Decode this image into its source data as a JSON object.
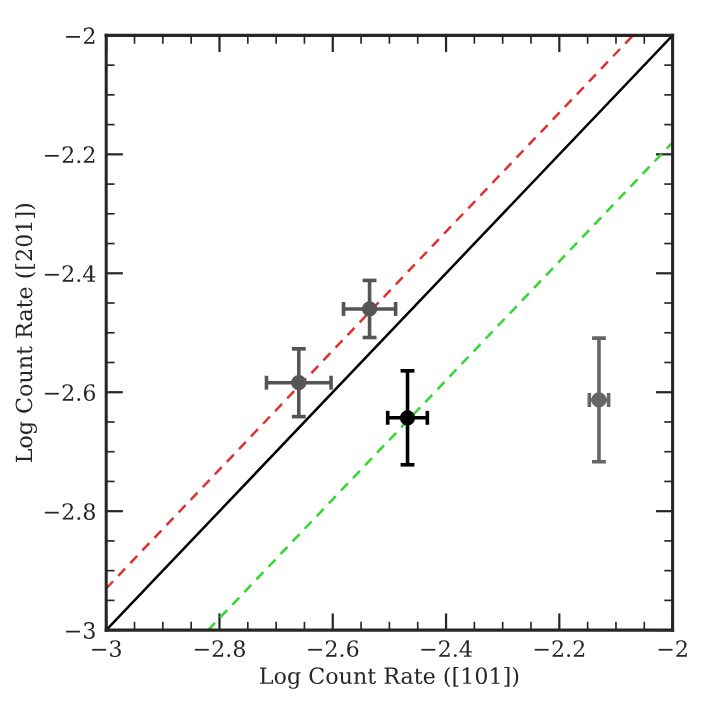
{
  "chart_data": {
    "type": "line",
    "xlabel": "Log Count Rate ([101])",
    "ylabel": "Log Count Rate ([201])",
    "xlim": [
      -3,
      -2
    ],
    "ylim": [
      -3,
      -2
    ],
    "xticks": [
      {
        "value": -3,
        "label": "−3"
      },
      {
        "value": -2.8,
        "label": "−2.8"
      },
      {
        "value": -2.6,
        "label": "−2.6"
      },
      {
        "value": -2.4,
        "label": "−2.4"
      },
      {
        "value": -2.2,
        "label": "−2.2"
      },
      {
        "value": -2,
        "label": "−2"
      }
    ],
    "yticks": [
      {
        "value": -3,
        "label": "−3"
      },
      {
        "value": -2.8,
        "label": "−2.8"
      },
      {
        "value": -2.6,
        "label": "−2.6"
      },
      {
        "value": -2.4,
        "label": "−2.4"
      },
      {
        "value": -2.2,
        "label": "−2.2"
      },
      {
        "value": -2,
        "label": "−2"
      }
    ],
    "grid": false,
    "series": [
      {
        "marker": "none",
        "color": "#e03030",
        "line_style": "dashed",
        "x": [
          -3,
          -2.07
        ],
        "values": [
          -2.93,
          -2
        ]
      },
      {
        "marker": "none",
        "color": "#000000",
        "line_style": "solid",
        "x": [
          -3,
          -2
        ],
        "values": [
          -3,
          -2
        ]
      },
      {
        "marker": "none",
        "color": "#30d830",
        "line_style": "dashed",
        "x": [
          -2.82,
          -2
        ],
        "values": [
          -3,
          -2.18
        ]
      },
      {
        "type": "scatter",
        "marker": "circle",
        "colors": [
          "#555555",
          "#555555",
          "#000000",
          "#666666"
        ],
        "x": [
          -2.66,
          -2.535,
          -2.468,
          -2.13
        ],
        "values": [
          -2.584,
          -2.46,
          -2.643,
          -2.613
        ],
        "errors": [
          0.057,
          0.048,
          0.079,
          0.104
        ],
        "xerrors": [
          0.057,
          0.046,
          0.035,
          0.017
        ]
      }
    ]
  }
}
